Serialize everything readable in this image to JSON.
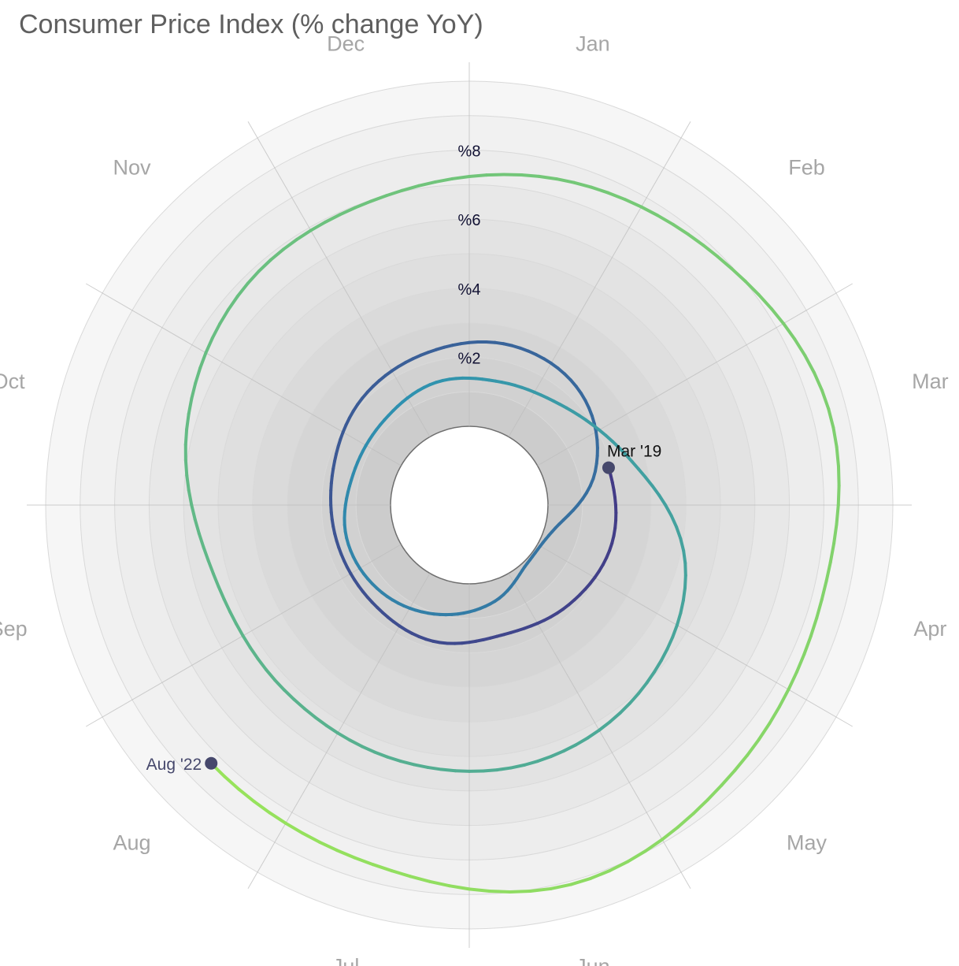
{
  "chart_data": {
    "type": "line",
    "subtype": "radial-spiral",
    "title": "Consumer Price Index (% change YoY)",
    "angular_axis": {
      "categories": [
        "Jan",
        "Feb",
        "Mar",
        "Apr",
        "May",
        "Jun",
        "Jul",
        "Aug",
        "Sep",
        "Oct",
        "Nov",
        "Dec"
      ]
    },
    "radial_axis": {
      "ticks": [
        2,
        4,
        6,
        8
      ],
      "tick_labels": [
        "%2",
        "%4",
        "%6",
        "%8"
      ],
      "range": [
        0,
        10
      ]
    },
    "grid": true,
    "colors": {
      "start": "#433a86",
      "mid": "#2e91b0",
      "end": "#98e35b",
      "marker": "#46486c"
    },
    "start_label": "Mar '19",
    "end_label": "Aug '22",
    "series": [
      {
        "x": [
          "2019-03",
          "2019-04",
          "2019-05",
          "2019-06",
          "2019-07",
          "2019-08",
          "2019-09",
          "2019-10",
          "2019-11",
          "2019-12",
          "2020-01",
          "2020-02",
          "2020-03",
          "2020-04",
          "2020-05",
          "2020-06",
          "2020-07",
          "2020-08",
          "2020-09",
          "2020-10",
          "2020-11",
          "2020-12",
          "2021-01",
          "2021-02",
          "2021-03",
          "2021-04",
          "2021-05",
          "2021-06",
          "2021-07",
          "2021-08",
          "2021-09",
          "2021-10",
          "2021-11",
          "2021-12",
          "2022-01",
          "2022-02",
          "2022-03",
          "2022-04",
          "2022-05",
          "2022-06",
          "2022-07",
          "2022-08"
        ],
        "y": [
          1.9,
          2.0,
          1.8,
          1.6,
          1.8,
          1.7,
          1.7,
          1.8,
          2.1,
          2.3,
          2.5,
          2.3,
          1.5,
          0.3,
          0.1,
          0.6,
          1.0,
          1.3,
          1.4,
          1.2,
          1.2,
          1.4,
          1.4,
          1.7,
          2.6,
          4.2,
          5.0,
          5.4,
          5.4,
          5.3,
          5.4,
          6.2,
          6.8,
          7.0,
          7.5,
          7.9,
          8.5,
          8.3,
          8.6,
          9.1,
          8.5,
          8.3
        ]
      }
    ]
  }
}
